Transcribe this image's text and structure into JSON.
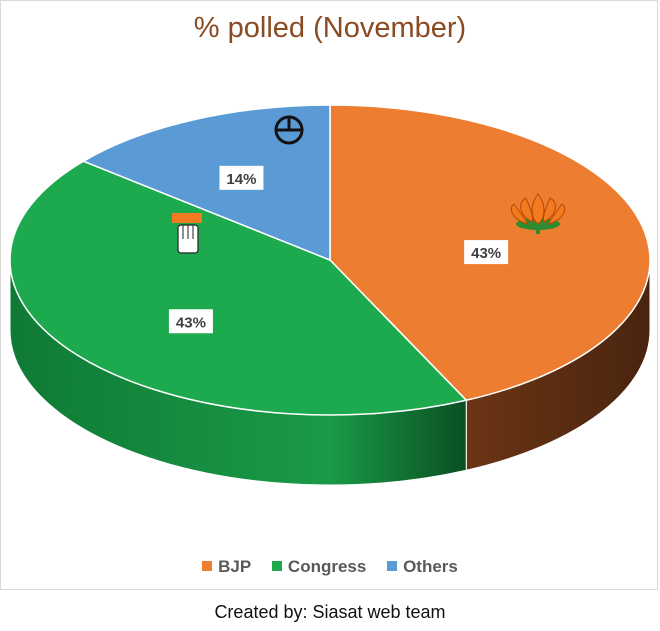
{
  "title": "% polled (November)",
  "footer": "Created by: Siasat web team",
  "chart_data": {
    "type": "pie",
    "title": "% polled (November)",
    "categories": [
      "BJP",
      "Congress",
      "Others"
    ],
    "values": [
      43,
      43,
      14
    ],
    "labels": [
      "43%",
      "43%",
      "14%"
    ],
    "colors": [
      "#ED7D31",
      "#1DAA4E",
      "#5B9BD5"
    ],
    "legend_position": "bottom",
    "style": "3d"
  },
  "legend": [
    {
      "label": "BJP",
      "color": "#ED7D31"
    },
    {
      "label": "Congress",
      "color": "#1DAA4E"
    },
    {
      "label": "Others",
      "color": "#5B9BD5"
    }
  ],
  "icons": {
    "bjp": "lotus-icon",
    "congress": "hand-icon",
    "others": "clock-symbol-icon"
  }
}
